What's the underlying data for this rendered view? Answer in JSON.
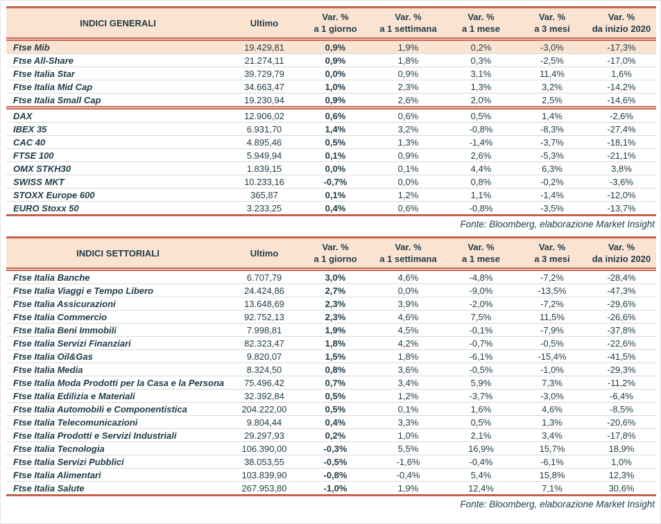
{
  "colors": {
    "accent_border": "#c6604a",
    "header_bg": "#fbe3d2",
    "text": "#1e3a46",
    "row_divider": "#d9d9d9"
  },
  "column_headers": {
    "ultimo": "Ultimo",
    "var_line1": "Var. %",
    "var_line2": [
      "a 1 giorno",
      "a 1 settimana",
      "a 1 mese",
      "a 3 mesi",
      "da inizio 2020"
    ]
  },
  "source_note": "Fonte: Bloomberg, elaborazione Market Insight",
  "tables": [
    {
      "title": "INDICI GENERALI",
      "groups": [
        {
          "rows": [
            {
              "name": "Ftse Mib",
              "ultimo": "19.429,81",
              "v1": "0,9%",
              "v2": "1,9%",
              "v3": "0,2%",
              "v4": "-3,0%",
              "v5": "-17,3%",
              "highlight": true
            },
            {
              "name": "Ftse All-Share",
              "ultimo": "21.274,11",
              "v1": "0,9%",
              "v2": "1,8%",
              "v3": "0,3%",
              "v4": "-2,5%",
              "v5": "-17,0%"
            },
            {
              "name": "Ftse Italia Star",
              "ultimo": "39.729,79",
              "v1": "0,0%",
              "v2": "0,9%",
              "v3": "3,1%",
              "v4": "11,4%",
              "v5": "1,6%"
            },
            {
              "name": "Ftse Italia Mid Cap",
              "ultimo": "34.663,47",
              "v1": "1,0%",
              "v2": "2,3%",
              "v3": "1,3%",
              "v4": "3,2%",
              "v5": "-14,2%"
            },
            {
              "name": "Ftse Italia Small Cap",
              "ultimo": "19.230,94",
              "v1": "0,9%",
              "v2": "2,6%",
              "v3": "2,0%",
              "v4": "2,5%",
              "v5": "-14,6%"
            }
          ]
        },
        {
          "rows": [
            {
              "name": "DAX",
              "ultimo": "12.906,02",
              "v1": "0,6%",
              "v2": "0,6%",
              "v3": "0,5%",
              "v4": "1,4%",
              "v5": "-2,6%"
            },
            {
              "name": "IBEX 35",
              "ultimo": "6.931,70",
              "v1": "1,4%",
              "v2": "3,2%",
              "v3": "-0,8%",
              "v4": "-8,3%",
              "v5": "-27,4%"
            },
            {
              "name": "CAC 40",
              "ultimo": "4.895,46",
              "v1": "0,5%",
              "v2": "1,3%",
              "v3": "-1,4%",
              "v4": "-3,7%",
              "v5": "-18,1%"
            },
            {
              "name": "FTSE 100",
              "ultimo": "5.949,94",
              "v1": "0,1%",
              "v2": "0,9%",
              "v3": "2,6%",
              "v4": "-5,3%",
              "v5": "-21,1%"
            },
            {
              "name": "OMX STKH30",
              "ultimo": "1.839,15",
              "v1": "0,0%",
              "v2": "0,1%",
              "v3": "4,4%",
              "v4": "6,3%",
              "v5": "3,8%"
            },
            {
              "name": "SWISS MKT",
              "ultimo": "10.233,16",
              "v1": "-0,7%",
              "v2": "0,0%",
              "v3": "0,8%",
              "v4": "-0,2%",
              "v5": "-3,6%"
            },
            {
              "name": "STOXX Europe 600",
              "ultimo": "365,87",
              "v1": "0,1%",
              "v2": "1,2%",
              "v3": "1,1%",
              "v4": "-1,4%",
              "v5": "-12,0%"
            },
            {
              "name": "EURO Stoxx 50",
              "ultimo": "3.233,25",
              "v1": "0,4%",
              "v2": "0,6%",
              "v3": "-0,8%",
              "v4": "-3,5%",
              "v5": "-13,7%"
            }
          ]
        }
      ]
    },
    {
      "title": "INDICI SETTORIALI",
      "groups": [
        {
          "rows": [
            {
              "name": "Ftse Italia Banche",
              "ultimo": "6.707,79",
              "v1": "3,0%",
              "v2": "4,6%",
              "v3": "-4,8%",
              "v4": "-7,2%",
              "v5": "-28,4%"
            },
            {
              "name": "Ftse Italia Viaggi e Tempo Libero",
              "ultimo": "24.424,86",
              "v1": "2,7%",
              "v2": "0,0%",
              "v3": "-9,0%",
              "v4": "-13,5%",
              "v5": "-47,3%"
            },
            {
              "name": "Ftse Italia Assicurazioni",
              "ultimo": "13.648,69",
              "v1": "2,3%",
              "v2": "3,9%",
              "v3": "-2,0%",
              "v4": "-7,2%",
              "v5": "-29,6%"
            },
            {
              "name": "Ftse Italia Commercio",
              "ultimo": "92.752,13",
              "v1": "2,3%",
              "v2": "4,6%",
              "v3": "7,5%",
              "v4": "11,5%",
              "v5": "-26,6%"
            },
            {
              "name": "Ftse Italia Beni Immobili",
              "ultimo": "7.998,81",
              "v1": "1,9%",
              "v2": "4,5%",
              "v3": "-0,1%",
              "v4": "-7,9%",
              "v5": "-37,8%"
            },
            {
              "name": "Ftse Italia Servizi Finanziari",
              "ultimo": "82.323,47",
              "v1": "1,8%",
              "v2": "4,2%",
              "v3": "-0,7%",
              "v4": "-0,5%",
              "v5": "-22,6%"
            },
            {
              "name": "Ftse Italia Oil&Gas",
              "ultimo": "9.820,07",
              "v1": "1,5%",
              "v2": "1,8%",
              "v3": "-6,1%",
              "v4": "-15,4%",
              "v5": "-41,5%"
            },
            {
              "name": "Ftse Italia Media",
              "ultimo": "8.324,50",
              "v1": "0,8%",
              "v2": "3,6%",
              "v3": "-0,5%",
              "v4": "-1,0%",
              "v5": "-29,3%"
            },
            {
              "name": "Ftse Italia Moda Prodotti per la Casa e la Persona",
              "ultimo": "75.496,42",
              "v1": "0,7%",
              "v2": "3,4%",
              "v3": "5,9%",
              "v4": "7,3%",
              "v5": "-11,2%"
            },
            {
              "name": "Ftse Italia Edilizia e Materiali",
              "ultimo": "32.392,84",
              "v1": "0,5%",
              "v2": "1,2%",
              "v3": "-3,7%",
              "v4": "-3,0%",
              "v5": "-6,4%"
            },
            {
              "name": "Ftse Italia Automobili e Componentistica",
              "ultimo": "204.222,00",
              "v1": "0,5%",
              "v2": "0,1%",
              "v3": "1,6%",
              "v4": "4,6%",
              "v5": "-8,5%"
            },
            {
              "name": "Ftse Italia Telecomunicazioni",
              "ultimo": "9.804,44",
              "v1": "0,4%",
              "v2": "3,3%",
              "v3": "0,5%",
              "v4": "1,3%",
              "v5": "-20,6%"
            },
            {
              "name": "Ftse Italia Prodotti e Servizi Industriali",
              "ultimo": "29.297,93",
              "v1": "0,2%",
              "v2": "1,0%",
              "v3": "2,1%",
              "v4": "3,4%",
              "v5": "-17,8%"
            },
            {
              "name": "Ftse Italia Tecnologia",
              "ultimo": "106.390,00",
              "v1": "-0,3%",
              "v2": "5,5%",
              "v3": "16,9%",
              "v4": "15,7%",
              "v5": "18,9%"
            },
            {
              "name": "Ftse Italia Servizi Pubblici",
              "ultimo": "38.053,55",
              "v1": "-0,5%",
              "v2": "-1,6%",
              "v3": "-0,4%",
              "v4": "-6,1%",
              "v5": "1,0%"
            },
            {
              "name": "Ftse Italia Alimentari",
              "ultimo": "103.839,90",
              "v1": "-0,8%",
              "v2": "-0,4%",
              "v3": "5,4%",
              "v4": "15,8%",
              "v5": "12,3%"
            },
            {
              "name": "Ftse Italia Salute",
              "ultimo": "267.953,80",
              "v1": "-1,0%",
              "v2": "1,9%",
              "v3": "12,4%",
              "v4": "7,1%",
              "v5": "30,6%"
            }
          ]
        }
      ]
    }
  ]
}
